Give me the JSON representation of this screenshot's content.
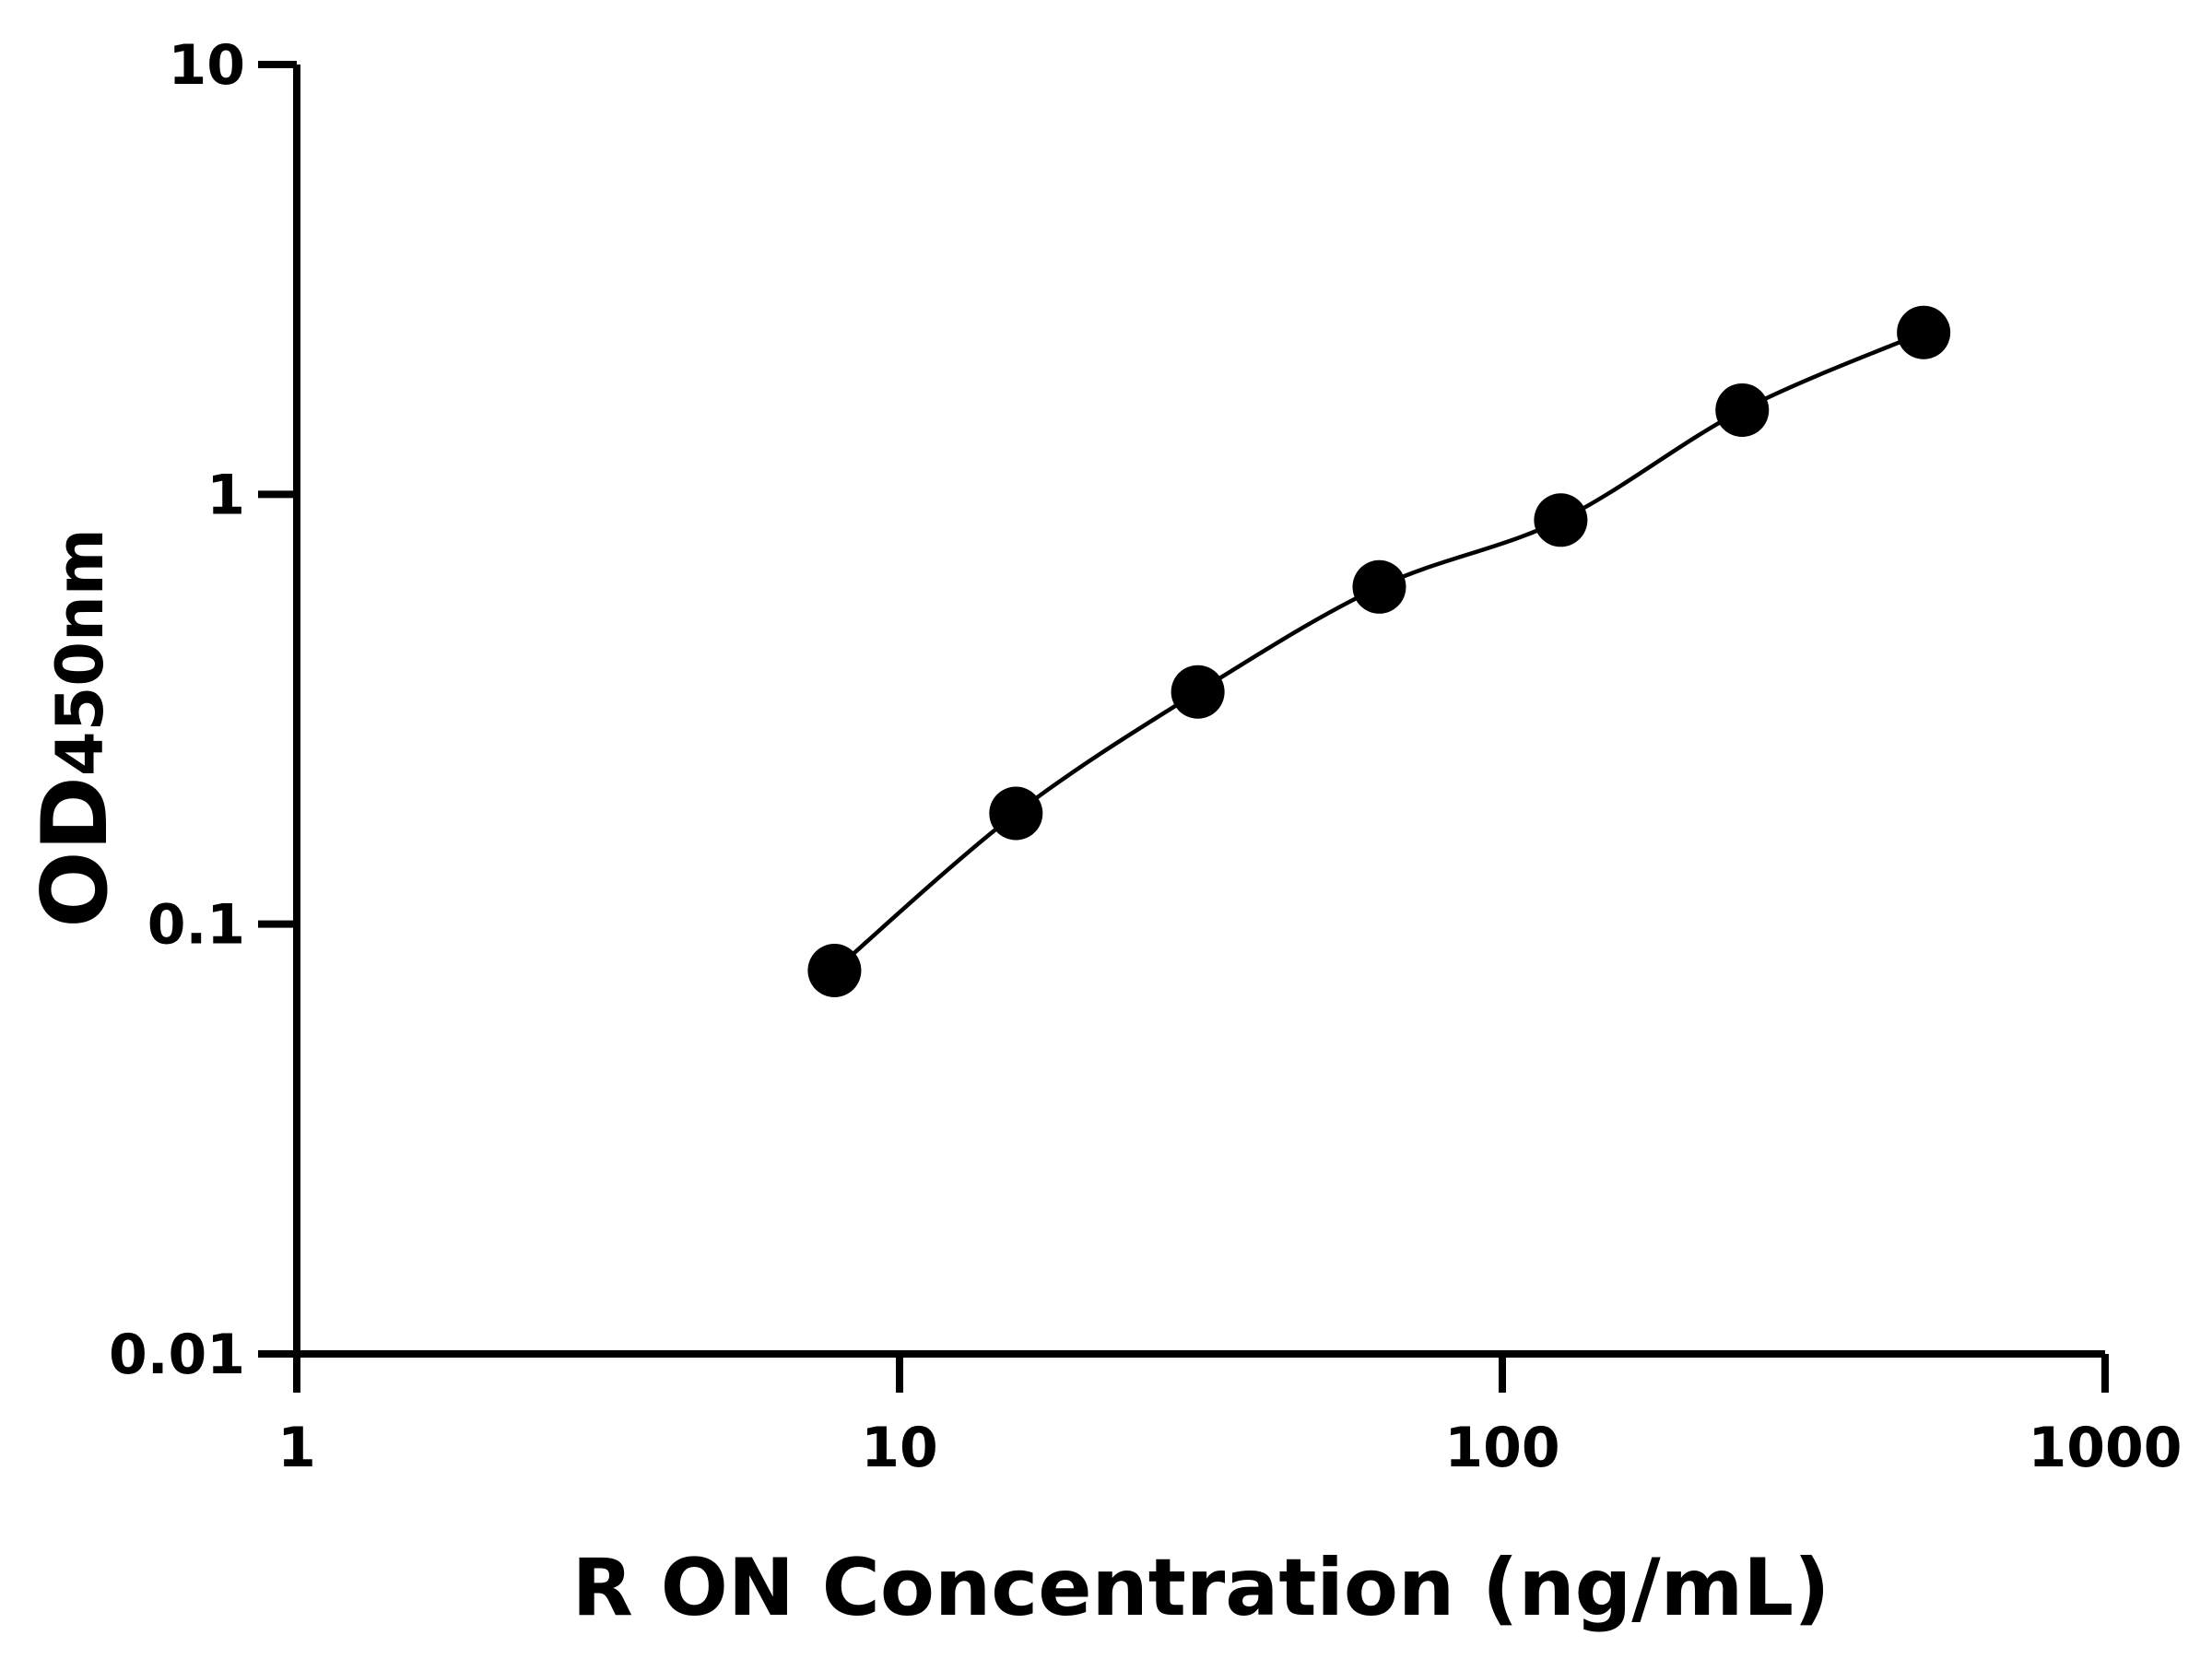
{
  "chart_data": {
    "type": "scatter",
    "xlabel": "R ON Concentration (ng/mL)",
    "ylabel": "OD",
    "ylabel_subscript": "450nm",
    "xscale": "log",
    "yscale": "log",
    "xlim": [
      1,
      1000
    ],
    "ylim": [
      0.01,
      10
    ],
    "xticks": [
      1,
      10,
      100,
      1000
    ],
    "yticks": [
      0.01,
      0.1,
      1,
      10
    ],
    "fit_curve": true,
    "series": [
      {
        "color": "#000000",
        "x": [
          7.8,
          15.6,
          31.25,
          62.5,
          125,
          250,
          500
        ],
        "values": [
          0.078,
          0.181,
          0.347,
          0.609,
          0.871,
          1.57,
          2.38
        ]
      }
    ]
  }
}
